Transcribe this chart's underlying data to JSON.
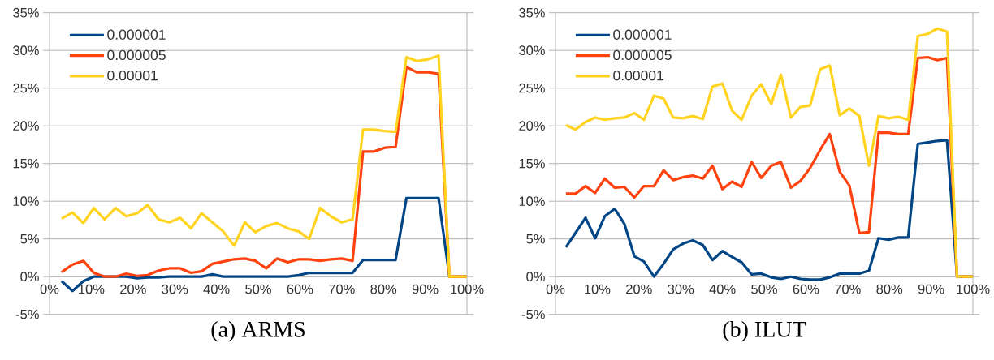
{
  "chart_data": [
    {
      "type": "line",
      "title": "(a) ARMS",
      "x": [
        2.9,
        5.5,
        8.1,
        10.6,
        13.2,
        15.8,
        18.4,
        21.0,
        23.5,
        26.1,
        28.7,
        31.3,
        33.9,
        36.4,
        39.0,
        41.6,
        44.2,
        46.8,
        49.3,
        51.9,
        54.5,
        57.1,
        59.7,
        62.2,
        64.8,
        67.4,
        70.0,
        72.6,
        75.1,
        77.7,
        80.3,
        82.9,
        85.5,
        88.0,
        90.6,
        93.2,
        95.8,
        100
      ],
      "series": [
        {
          "name": "0.000001",
          "color": "#004586",
          "values": [
            -0.6,
            -1.9,
            -0.6,
            0,
            0,
            0,
            0,
            -0.2,
            -0.1,
            -0.1,
            0,
            0,
            0,
            0,
            0.3,
            0,
            0,
            0,
            0,
            0,
            0,
            0,
            0.2,
            0.5,
            0.5,
            0.5,
            0.5,
            0.5,
            2.2,
            2.2,
            2.2,
            2.2,
            10.4,
            10.4,
            10.4,
            10.4,
            0,
            0
          ]
        },
        {
          "name": "0.000005",
          "color": "#ff420e",
          "values": [
            0.6,
            1.6,
            2.1,
            0.5,
            0.0,
            0.0,
            0.4,
            0.1,
            0.2,
            0.8,
            1.1,
            1.1,
            0.5,
            0.7,
            1.7,
            2.0,
            2.3,
            2.4,
            2.1,
            1.1,
            2.4,
            1.9,
            2.3,
            2.3,
            2.1,
            2.3,
            2.4,
            2.1,
            16.6,
            16.6,
            17.1,
            17.2,
            27.8,
            27.1,
            27.1,
            26.9,
            0,
            0
          ]
        },
        {
          "name": "0.00001",
          "color": "#ffd320",
          "values": [
            7.7,
            8.5,
            7.1,
            9.1,
            7.6,
            9.1,
            8.0,
            8.4,
            9.5,
            7.6,
            7.2,
            7.8,
            6.4,
            8.4,
            7.2,
            6.0,
            4.1,
            7.2,
            5.9,
            6.7,
            7.1,
            6.4,
            6.0,
            5.0,
            9.1,
            8.0,
            7.2,
            7.6,
            19.5,
            19.5,
            19.3,
            19.2,
            29.1,
            28.6,
            28.8,
            29.3,
            0,
            0
          ]
        }
      ],
      "xlim": [
        0,
        100
      ],
      "xticks": [
        {
          "value": 0,
          "label": "0%"
        },
        {
          "value": 10,
          "label": "10%"
        },
        {
          "value": 20,
          "label": "20%"
        },
        {
          "value": 30,
          "label": "30%"
        },
        {
          "value": 40,
          "label": "40%"
        },
        {
          "value": 50,
          "label": "50%"
        },
        {
          "value": 60,
          "label": "60%"
        },
        {
          "value": 70,
          "label": "70%"
        },
        {
          "value": 80,
          "label": "80%"
        },
        {
          "value": 90,
          "label": "90%"
        },
        {
          "value": 100,
          "label": "100%"
        }
      ],
      "ylim": [
        -5,
        35
      ],
      "yticks": [
        {
          "value": -5,
          "label": "-5%"
        },
        {
          "value": 0,
          "label": "0%"
        },
        {
          "value": 5,
          "label": "5%"
        },
        {
          "value": 10,
          "label": "10%"
        },
        {
          "value": 15,
          "label": "15%"
        },
        {
          "value": 20,
          "label": "20%"
        },
        {
          "value": 25,
          "label": "25%"
        },
        {
          "value": 30,
          "label": "30%"
        },
        {
          "value": 35,
          "label": "35%"
        }
      ],
      "grid": "y",
      "legend": "top left",
      "marker": "none",
      "line_style": "solid"
    },
    {
      "type": "line",
      "title": "(b) ILUT",
      "x": [
        2.5,
        4.8,
        7.2,
        9.5,
        11.8,
        14.2,
        16.5,
        18.9,
        21.2,
        23.6,
        25.9,
        28.2,
        30.6,
        32.9,
        35.3,
        37.6,
        40.0,
        42.3,
        44.6,
        47.0,
        49.3,
        51.7,
        54.0,
        56.4,
        58.7,
        61.0,
        63.4,
        65.7,
        68.1,
        70.4,
        72.8,
        75.1,
        77.4,
        79.8,
        82.1,
        84.5,
        86.8,
        89.2,
        91.5,
        93.8,
        96.2,
        100
      ],
      "series": [
        {
          "name": "0.000001",
          "color": "#004586",
          "values": [
            3.9,
            5.8,
            7.8,
            5.1,
            8.0,
            9.0,
            7.0,
            2.7,
            2.0,
            0.0,
            1.7,
            3.6,
            4.4,
            4.8,
            4.2,
            2.2,
            3.4,
            2.6,
            1.9,
            0.3,
            0.4,
            -0.1,
            -0.3,
            0.0,
            -0.3,
            -0.4,
            -0.4,
            -0.1,
            0.4,
            0.4,
            0.4,
            0.8,
            5.1,
            4.9,
            5.2,
            5.2,
            17.6,
            17.8,
            18.0,
            18.1,
            0,
            0
          ]
        },
        {
          "name": "0.000005",
          "color": "#ff420e",
          "values": [
            11.0,
            11.0,
            12.0,
            11.1,
            13.0,
            11.8,
            11.9,
            10.5,
            12.0,
            12.0,
            14.1,
            12.8,
            13.2,
            13.4,
            13.0,
            14.7,
            11.6,
            12.6,
            11.9,
            15.2,
            13.1,
            14.7,
            15.2,
            11.8,
            12.7,
            14.4,
            16.8,
            18.9,
            13.9,
            12.1,
            5.8,
            5.9,
            19.1,
            19.1,
            18.9,
            18.9,
            29.0,
            29.1,
            28.7,
            29.0,
            0,
            0
          ]
        },
        {
          "name": "0.00001",
          "color": "#ffd320",
          "values": [
            20.1,
            19.5,
            20.5,
            21.1,
            20.8,
            21.0,
            21.1,
            21.7,
            20.8,
            24.0,
            23.6,
            21.1,
            21.0,
            21.3,
            20.9,
            25.2,
            25.6,
            22.0,
            20.8,
            24.0,
            25.5,
            22.9,
            26.8,
            21.1,
            22.5,
            22.7,
            27.5,
            28.0,
            21.4,
            22.3,
            21.3,
            14.7,
            21.3,
            21.0,
            21.2,
            20.8,
            31.9,
            32.2,
            32.9,
            32.5,
            0,
            0
          ]
        }
      ],
      "xlim": [
        0,
        100
      ],
      "xticks": [
        {
          "value": 0,
          "label": "0%"
        },
        {
          "value": 10,
          "label": "10%"
        },
        {
          "value": 20,
          "label": "20%"
        },
        {
          "value": 30,
          "label": "30%"
        },
        {
          "value": 40,
          "label": "40%"
        },
        {
          "value": 50,
          "label": "50%"
        },
        {
          "value": 60,
          "label": "60%"
        },
        {
          "value": 70,
          "label": "70%"
        },
        {
          "value": 80,
          "label": "80%"
        },
        {
          "value": 90,
          "label": "90%"
        },
        {
          "value": 100,
          "label": "100%"
        }
      ],
      "ylim": [
        -5,
        35
      ],
      "yticks": [
        {
          "value": -5,
          "label": "-5%"
        },
        {
          "value": 0,
          "label": "0%"
        },
        {
          "value": 5,
          "label": "5%"
        },
        {
          "value": 10,
          "label": "10%"
        },
        {
          "value": 15,
          "label": "15%"
        },
        {
          "value": 20,
          "label": "20%"
        },
        {
          "value": 25,
          "label": "25%"
        },
        {
          "value": 30,
          "label": "30%"
        },
        {
          "value": 35,
          "label": "35%"
        }
      ],
      "grid": "y",
      "legend": "top left",
      "marker": "none",
      "line_style": "solid"
    }
  ]
}
